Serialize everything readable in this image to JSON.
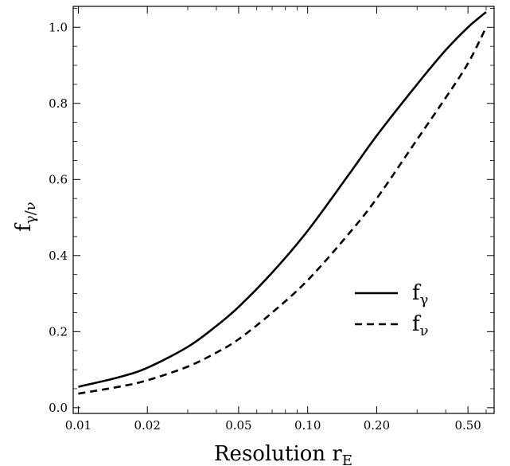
{
  "chart_data": {
    "type": "line",
    "xlabel": "Resolution r",
    "xlabel_sub": "E",
    "ylabel": "f",
    "ylabel_sub": "γ/ν",
    "x_scale": "log",
    "xlim": [
      0.0095,
      0.65
    ],
    "ylim": [
      -0.015,
      1.055
    ],
    "x_ticks": [
      0.01,
      0.02,
      0.05,
      0.1,
      0.2,
      0.5
    ],
    "x_tick_labels": [
      "0.01",
      "0.02",
      "0.05",
      "0.10",
      "0.20",
      "0.50"
    ],
    "y_ticks": [
      0.0,
      0.2,
      0.4,
      0.6,
      0.8,
      1.0
    ],
    "y_tick_labels": [
      "0.0",
      "0.2",
      "0.4",
      "0.6",
      "0.8",
      "1.0"
    ],
    "grid": false,
    "legend_position": "lower-right",
    "series": [
      {
        "name": "f",
        "name_sub": "γ",
        "style": "solid",
        "color": "#000000",
        "x": [
          0.01,
          0.015,
          0.02,
          0.03,
          0.04,
          0.05,
          0.07,
          0.1,
          0.15,
          0.2,
          0.3,
          0.4,
          0.5,
          0.6
        ],
        "y": [
          0.055,
          0.08,
          0.105,
          0.16,
          0.215,
          0.265,
          0.355,
          0.465,
          0.61,
          0.715,
          0.85,
          0.94,
          1.0,
          1.04
        ]
      },
      {
        "name": "f",
        "name_sub": "ν",
        "style": "dashed",
        "color": "#000000",
        "x": [
          0.01,
          0.015,
          0.02,
          0.03,
          0.04,
          0.05,
          0.07,
          0.1,
          0.15,
          0.2,
          0.3,
          0.4,
          0.5,
          0.6
        ],
        "y": [
          0.037,
          0.055,
          0.072,
          0.108,
          0.145,
          0.18,
          0.25,
          0.335,
          0.455,
          0.55,
          0.705,
          0.815,
          0.905,
          1.0
        ]
      }
    ]
  }
}
